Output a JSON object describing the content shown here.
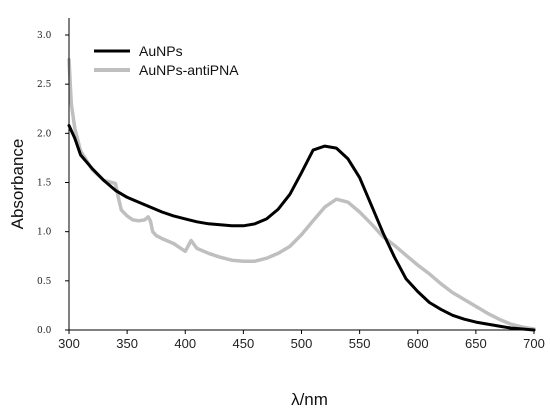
{
  "chart_data": {
    "type": "line",
    "title": "",
    "xlabel": "λ/nm",
    "ylabel": "Absorbance",
    "xlim": [
      300,
      700
    ],
    "ylim": [
      0.0,
      3.0
    ],
    "x_ticks": [
      "300",
      "350",
      "400",
      "450",
      "500",
      "550",
      "600",
      "650",
      "700"
    ],
    "y_ticks": [
      "0.0",
      "0.5",
      "1.0",
      "1.5",
      "2.0",
      "2.5",
      "3.0"
    ],
    "grid": false,
    "legend_position": "top-left",
    "series": [
      {
        "name": "AuNPs",
        "color": "#000000",
        "x": [
          300,
          305,
          310,
          320,
          330,
          340,
          350,
          360,
          370,
          380,
          390,
          400,
          410,
          420,
          430,
          440,
          450,
          460,
          470,
          480,
          490,
          500,
          510,
          520,
          530,
          540,
          550,
          560,
          570,
          580,
          590,
          600,
          610,
          620,
          630,
          640,
          650,
          660,
          670,
          680,
          690,
          700
        ],
        "y": [
          2.08,
          1.95,
          1.78,
          1.64,
          1.52,
          1.42,
          1.35,
          1.3,
          1.25,
          1.2,
          1.16,
          1.13,
          1.1,
          1.08,
          1.07,
          1.06,
          1.06,
          1.08,
          1.13,
          1.23,
          1.38,
          1.6,
          1.83,
          1.87,
          1.85,
          1.74,
          1.55,
          1.27,
          0.99,
          0.74,
          0.52,
          0.39,
          0.28,
          0.21,
          0.15,
          0.11,
          0.08,
          0.06,
          0.04,
          0.02,
          0.01,
          0.0
        ]
      },
      {
        "name": "AuNPs-antiPNA",
        "color": "#bfbfbf",
        "x": [
          300,
          302,
          305,
          310,
          320,
          330,
          340,
          342,
          345,
          350,
          355,
          360,
          365,
          368,
          370,
          372,
          375,
          380,
          390,
          395,
          400,
          405,
          410,
          420,
          430,
          440,
          450,
          460,
          470,
          480,
          490,
          500,
          510,
          520,
          530,
          540,
          550,
          560,
          570,
          580,
          590,
          600,
          610,
          620,
          630,
          640,
          650,
          660,
          670,
          680,
          690,
          700
        ],
        "y": [
          2.75,
          2.3,
          2.05,
          1.82,
          1.63,
          1.52,
          1.49,
          1.37,
          1.22,
          1.16,
          1.12,
          1.11,
          1.12,
          1.15,
          1.11,
          1.0,
          0.96,
          0.93,
          0.88,
          0.84,
          0.8,
          0.91,
          0.83,
          0.78,
          0.74,
          0.71,
          0.7,
          0.7,
          0.73,
          0.78,
          0.85,
          0.97,
          1.11,
          1.25,
          1.33,
          1.3,
          1.2,
          1.08,
          0.95,
          0.86,
          0.76,
          0.66,
          0.57,
          0.47,
          0.38,
          0.31,
          0.24,
          0.17,
          0.11,
          0.06,
          0.03,
          0.01
        ]
      }
    ]
  }
}
